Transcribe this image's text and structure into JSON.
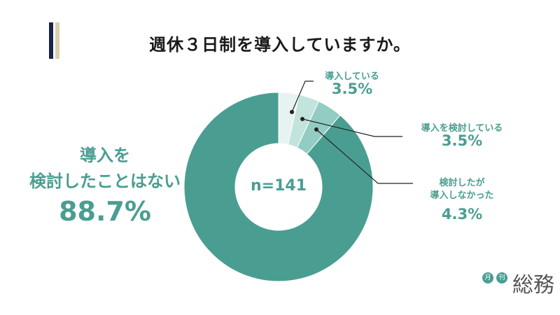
{
  "title": "週休３日制を導入していますか。",
  "chart_data": {
    "type": "pie",
    "donut": true,
    "center_label": "n=141",
    "slices": [
      {
        "label": "導入している",
        "value": 3.5,
        "pct_label": "3.5%",
        "color": "#e7f3f1"
      },
      {
        "label": "導入を検討している",
        "value": 3.5,
        "pct_label": "3.5%",
        "color": "#c3e3dd"
      },
      {
        "label_line1": "検討したが",
        "label_line2": "導入しなかった",
        "value": 4.3,
        "pct_label": "4.3%",
        "color": "#92ccc2"
      },
      {
        "label_line1": "導入を",
        "label_line2": "検討したことはない",
        "value": 88.7,
        "pct_label": "88.7%",
        "color": "#4a9e91"
      }
    ]
  },
  "logo": {
    "small1": "月",
    "small2": "刊",
    "text": "総務"
  }
}
